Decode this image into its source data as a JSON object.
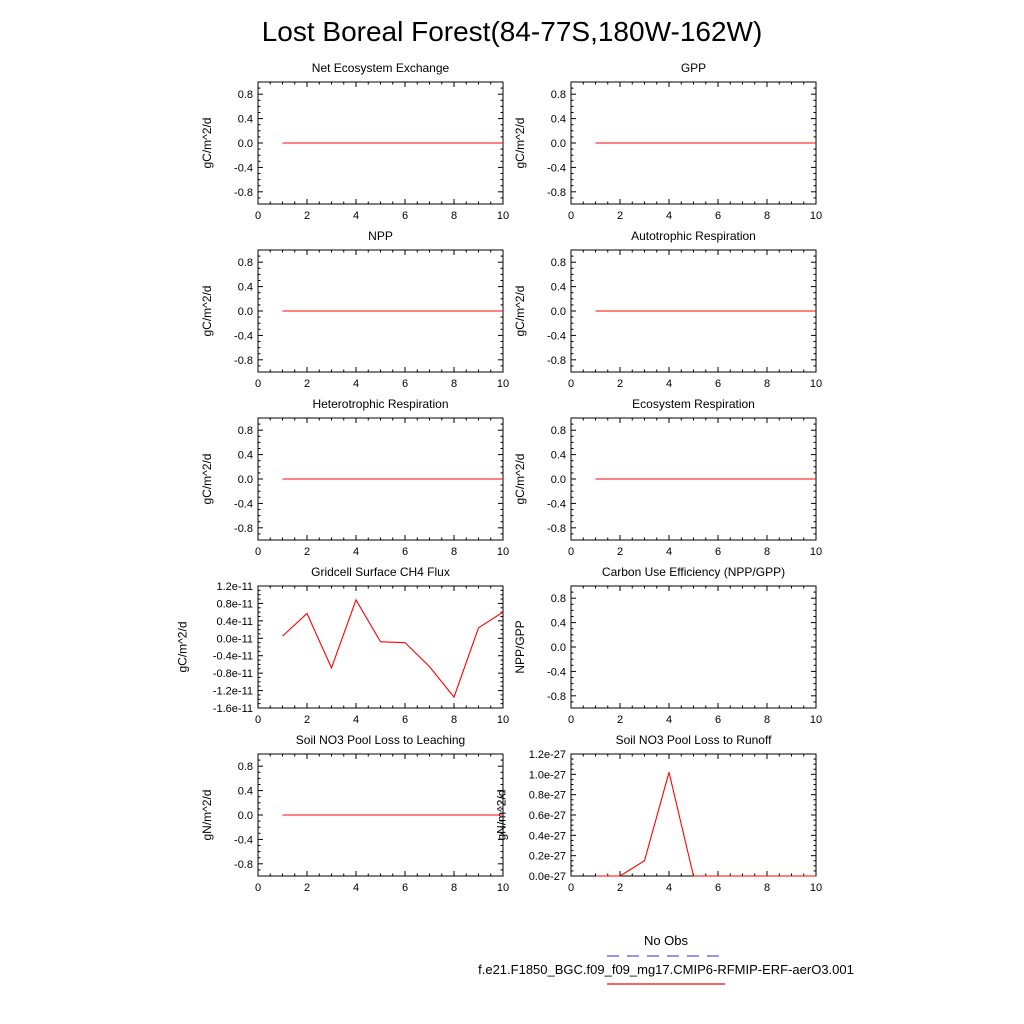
{
  "title": "Lost Boreal Forest(84-77S,180W-162W)",
  "colors": {
    "model": "#ff0000",
    "obs": "#5a5adc",
    "axis": "#000000"
  },
  "legend": {
    "obs_label": "No Obs",
    "model_label": "f.e21.F1850_BGC.f09_f09_mg17.CMIP6-RFMIP-ERF-aerO3.001"
  },
  "chart_data": [
    {
      "type": "line",
      "title": "Net Ecosystem Exchange",
      "ylabel": "gC/m^2/d",
      "xlim": [
        0,
        10
      ],
      "ylim": [
        -1,
        1
      ],
      "xticks": [
        0,
        2,
        4,
        6,
        8,
        10
      ],
      "xtick_labels": [
        "0",
        "2",
        "4",
        "6",
        "8",
        "10"
      ],
      "yticks": [
        -0.8,
        -0.4,
        0,
        0.4,
        0.8
      ],
      "ytick_labels": [
        "-0.8",
        "-0.4",
        "0.0",
        "0.4",
        "0.8"
      ],
      "x": [
        1,
        2,
        3,
        4,
        5,
        6,
        7,
        8,
        9,
        10
      ],
      "values": [
        0,
        0,
        0,
        0,
        0,
        0,
        0,
        0,
        0,
        0
      ]
    },
    {
      "type": "line",
      "title": "GPP",
      "ylabel": "gC/m^2/d",
      "xlim": [
        0,
        10
      ],
      "ylim": [
        -1,
        1
      ],
      "xticks": [
        0,
        2,
        4,
        6,
        8,
        10
      ],
      "xtick_labels": [
        "0",
        "2",
        "4",
        "6",
        "8",
        "10"
      ],
      "yticks": [
        -0.8,
        -0.4,
        0,
        0.4,
        0.8
      ],
      "ytick_labels": [
        "-0.8",
        "-0.4",
        "0.0",
        "0.4",
        "0.8"
      ],
      "x": [
        1,
        2,
        3,
        4,
        5,
        6,
        7,
        8,
        9,
        10
      ],
      "values": [
        0,
        0,
        0,
        0,
        0,
        0,
        0,
        0,
        0,
        0
      ]
    },
    {
      "type": "line",
      "title": "NPP",
      "ylabel": "gC/m^2/d",
      "xlim": [
        0,
        10
      ],
      "ylim": [
        -1,
        1
      ],
      "xticks": [
        0,
        2,
        4,
        6,
        8,
        10
      ],
      "xtick_labels": [
        "0",
        "2",
        "4",
        "6",
        "8",
        "10"
      ],
      "yticks": [
        -0.8,
        -0.4,
        0,
        0.4,
        0.8
      ],
      "ytick_labels": [
        "-0.8",
        "-0.4",
        "0.0",
        "0.4",
        "0.8"
      ],
      "x": [
        1,
        2,
        3,
        4,
        5,
        6,
        7,
        8,
        9,
        10
      ],
      "values": [
        0,
        0,
        0,
        0,
        0,
        0,
        0,
        0,
        0,
        0
      ]
    },
    {
      "type": "line",
      "title": "Autotrophic Respiration",
      "ylabel": "gC/m^2/d",
      "xlim": [
        0,
        10
      ],
      "ylim": [
        -1,
        1
      ],
      "xticks": [
        0,
        2,
        4,
        6,
        8,
        10
      ],
      "xtick_labels": [
        "0",
        "2",
        "4",
        "6",
        "8",
        "10"
      ],
      "yticks": [
        -0.8,
        -0.4,
        0,
        0.4,
        0.8
      ],
      "ytick_labels": [
        "-0.8",
        "-0.4",
        "0.0",
        "0.4",
        "0.8"
      ],
      "x": [
        1,
        2,
        3,
        4,
        5,
        6,
        7,
        8,
        9,
        10
      ],
      "values": [
        0,
        0,
        0,
        0,
        0,
        0,
        0,
        0,
        0,
        0
      ]
    },
    {
      "type": "line",
      "title": "Heterotrophic Respiration",
      "ylabel": "gC/m^2/d",
      "xlim": [
        0,
        10
      ],
      "ylim": [
        -1,
        1
      ],
      "xticks": [
        0,
        2,
        4,
        6,
        8,
        10
      ],
      "xtick_labels": [
        "0",
        "2",
        "4",
        "6",
        "8",
        "10"
      ],
      "yticks": [
        -0.8,
        -0.4,
        0,
        0.4,
        0.8
      ],
      "ytick_labels": [
        "-0.8",
        "-0.4",
        "0.0",
        "0.4",
        "0.8"
      ],
      "x": [
        1,
        2,
        3,
        4,
        5,
        6,
        7,
        8,
        9,
        10
      ],
      "values": [
        0,
        0,
        0,
        0,
        0,
        0,
        0,
        0,
        0,
        0
      ]
    },
    {
      "type": "line",
      "title": "Ecosystem Respiration",
      "ylabel": "gC/m^2/d",
      "xlim": [
        0,
        10
      ],
      "ylim": [
        -1,
        1
      ],
      "xticks": [
        0,
        2,
        4,
        6,
        8,
        10
      ],
      "xtick_labels": [
        "0",
        "2",
        "4",
        "6",
        "8",
        "10"
      ],
      "yticks": [
        -0.8,
        -0.4,
        0,
        0.4,
        0.8
      ],
      "ytick_labels": [
        "-0.8",
        "-0.4",
        "0.0",
        "0.4",
        "0.8"
      ],
      "x": [
        1,
        2,
        3,
        4,
        5,
        6,
        7,
        8,
        9,
        10
      ],
      "values": [
        0,
        0,
        0,
        0,
        0,
        0,
        0,
        0,
        0,
        0
      ]
    },
    {
      "type": "line",
      "title": "Gridcell Surface CH4 Flux",
      "ylabel": "gC/m^2/d",
      "xlim": [
        0,
        10
      ],
      "ylim": [
        -1.6e-11,
        1.2e-11
      ],
      "xticks": [
        0,
        2,
        4,
        6,
        8,
        10
      ],
      "xtick_labels": [
        "0",
        "2",
        "4",
        "6",
        "8",
        "10"
      ],
      "yticks": [
        -1.6e-11,
        -1.2e-11,
        -8e-12,
        -4e-12,
        0,
        4e-12,
        8e-12,
        1.2e-11
      ],
      "ytick_labels": [
        "-1.6e-11",
        "-1.2e-11",
        "-0.8e-11",
        "-0.4e-11",
        "0.0e-11",
        "0.4e-11",
        "0.8e-11",
        "1.2e-11"
      ],
      "x": [
        1,
        2,
        3,
        4,
        5,
        6,
        7,
        8,
        9,
        10
      ],
      "values": [
        5e-13,
        5.7e-12,
        -6.8e-12,
        8.8e-12,
        -8e-13,
        -1e-12,
        -6.5e-12,
        -1.35e-11,
        2.4e-12,
        6e-12
      ]
    },
    {
      "type": "line",
      "title": "Carbon Use Efficiency (NPP/GPP)",
      "ylabel": "NPP/GPP",
      "xlim": [
        0,
        10
      ],
      "ylim": [
        -1,
        1
      ],
      "xticks": [
        0,
        2,
        4,
        6,
        8,
        10
      ],
      "xtick_labels": [
        "0",
        "2",
        "4",
        "6",
        "8",
        "10"
      ],
      "yticks": [
        -0.8,
        -0.4,
        0,
        0.4,
        0.8
      ],
      "ytick_labels": [
        "-0.8",
        "-0.4",
        "0.0",
        "0.4",
        "0.8"
      ],
      "x": [],
      "values": []
    },
    {
      "type": "line",
      "title": "Soil NO3 Pool Loss to Leaching",
      "ylabel": "gN/m^2/d",
      "xlim": [
        0,
        10
      ],
      "ylim": [
        -1,
        1
      ],
      "xticks": [
        0,
        2,
        4,
        6,
        8,
        10
      ],
      "xtick_labels": [
        "0",
        "2",
        "4",
        "6",
        "8",
        "10"
      ],
      "yticks": [
        -0.8,
        -0.4,
        0,
        0.4,
        0.8
      ],
      "ytick_labels": [
        "-0.8",
        "-0.4",
        "0.0",
        "0.4",
        "0.8"
      ],
      "x": [
        1,
        2,
        3,
        4,
        5,
        6,
        7,
        8,
        9,
        10
      ],
      "values": [
        0,
        0,
        0,
        0,
        0,
        0,
        0,
        0,
        0,
        0
      ]
    },
    {
      "type": "line",
      "title": "Soil NO3 Pool Loss to Runoff",
      "ylabel": "gN/m^2/d",
      "xlim": [
        0,
        10
      ],
      "ylim": [
        0,
        1.2e-27
      ],
      "xticks": [
        0,
        2,
        4,
        6,
        8,
        10
      ],
      "xtick_labels": [
        "0",
        "2",
        "4",
        "6",
        "8",
        "10"
      ],
      "yticks": [
        0,
        2e-28,
        4e-28,
        6e-28,
        8e-28,
        1e-27,
        1.2e-27
      ],
      "ytick_labels": [
        "0.0e-27",
        "0.2e-27",
        "0.4e-27",
        "0.6e-27",
        "0.8e-27",
        "1.0e-27",
        "1.2e-27"
      ],
      "x": [
        1,
        2,
        3,
        4,
        5,
        6,
        7,
        8,
        9,
        10
      ],
      "values": [
        0,
        0,
        1.5e-28,
        1.02e-27,
        0,
        0,
        0,
        0,
        0,
        0
      ]
    }
  ]
}
